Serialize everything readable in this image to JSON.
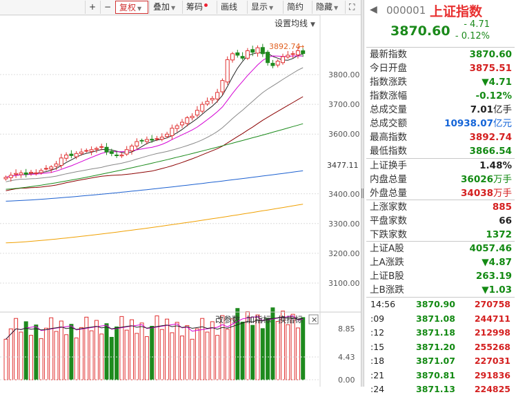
{
  "toolbar": {
    "buttons": [
      {
        "label": "+",
        "icon": "plus-icon"
      },
      {
        "label": "−",
        "icon": "minus-icon"
      },
      {
        "label": "复权",
        "caret": true,
        "active": true
      },
      {
        "label": "叠加",
        "caret": true
      },
      {
        "label": "筹码",
        "dot": true
      },
      {
        "label": "画线"
      },
      {
        "label": "显示",
        "caret": true
      },
      {
        "label": "简约"
      },
      {
        "label": "隐藏",
        "caret": true
      },
      {
        "label": "⛶",
        "icon": "fullscreen-icon"
      }
    ]
  },
  "chart": {
    "settings_label": "设置均线",
    "high_marker": "3892.74",
    "y_labels": [
      "3800.00",
      "3700.00",
      "3600.00",
      "3477.11",
      "3400.00",
      "3300.00",
      "3200.00",
      "3100.00"
    ],
    "sub_buttons": [
      "改参数",
      "加指标",
      "换指标"
    ],
    "sub_y_labels": [
      "8.85",
      "4.43",
      "0.00"
    ],
    "colors": {
      "up": "#e03030",
      "down": "#1e8a1e",
      "ma5": "#222222",
      "ma10": "#d400d4",
      "ma20": "#888888",
      "ma30": "#8b0000",
      "ma60": "#1a8a1a",
      "ma120": "#1a5fd0",
      "ma250": "#f0a000"
    }
  },
  "quote": {
    "code": "000001",
    "name": "上证指数",
    "price": "3870.60",
    "change": "- 4.71",
    "change_pct": "- 0.12%"
  },
  "stats_group1": [
    {
      "label": "最新指数",
      "value": "3870.60",
      "color": "green"
    },
    {
      "label": "今日开盘",
      "value": "3875.51",
      "color": "red"
    },
    {
      "label": "指数涨跌",
      "value": "▼4.71",
      "color": "green"
    },
    {
      "label": "指数涨幅",
      "value": "-0.12%",
      "color": "green"
    },
    {
      "label": "总成交量",
      "value": "7.01",
      "unit": "亿手",
      "color": "dark"
    },
    {
      "label": "总成交额",
      "value": "10938.07",
      "unit": "亿元",
      "color": "blue"
    },
    {
      "label": "最高指数",
      "value": "3892.74",
      "color": "red"
    },
    {
      "label": "最低指数",
      "value": "3866.54",
      "color": "green"
    }
  ],
  "stats_group2": [
    {
      "label": "上证换手",
      "value": "1.48%",
      "color": "dark"
    },
    {
      "label": "内盘总量",
      "value": "36026",
      "unit": "万手",
      "color": "green"
    },
    {
      "label": "外盘总量",
      "value": "34038",
      "unit": "万手",
      "color": "red"
    }
  ],
  "stats_group3": [
    {
      "label": "上涨家数",
      "value": "885",
      "color": "red"
    },
    {
      "label": "平盘家数",
      "value": "66",
      "color": "dark"
    },
    {
      "label": "下跌家数",
      "value": "1372",
      "color": "green"
    }
  ],
  "stats_group4": [
    {
      "label": "上证A股",
      "value": "4057.46",
      "color": "green"
    },
    {
      "label": "上A涨跌",
      "value": "▼4.87",
      "color": "green"
    },
    {
      "label": "上证B股",
      "value": "263.19",
      "color": "green"
    },
    {
      "label": "上B涨跌",
      "value": "▼1.03",
      "color": "green"
    }
  ],
  "ticks": [
    {
      "time": "14:56",
      "price": "3870.90",
      "vol": "270758"
    },
    {
      "time": ":09",
      "price": "3871.08",
      "vol": "244711"
    },
    {
      "time": ":12",
      "price": "3871.18",
      "vol": "212998"
    },
    {
      "time": ":15",
      "price": "3871.20",
      "vol": "255268"
    },
    {
      "time": ":18",
      "price": "3871.07",
      "vol": "227031"
    },
    {
      "time": ":21",
      "price": "3870.81",
      "vol": "291836"
    },
    {
      "time": ":24",
      "price": "3871.13",
      "vol": "224825"
    }
  ]
}
